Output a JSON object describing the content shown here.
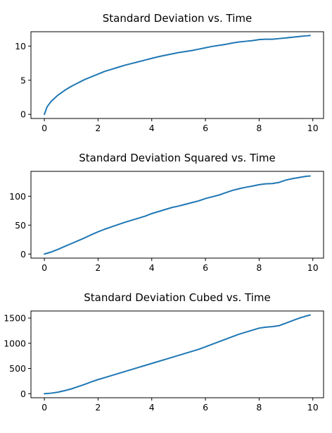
{
  "chart_data": [
    {
      "type": "line",
      "title": "Standard Deviation vs. Time",
      "xlabel": "",
      "ylabel": "",
      "xlim": [
        -0.5,
        10.4
      ],
      "ylim": [
        -0.6,
        12.1
      ],
      "xticks": [
        0,
        2,
        4,
        6,
        8,
        10
      ],
      "yticks": [
        0,
        5,
        10
      ],
      "grid": false,
      "series": [
        {
          "color": "#1f77b4",
          "x": [
            0,
            0.1,
            0.25,
            0.5,
            0.75,
            1,
            1.25,
            1.5,
            1.75,
            2,
            2.25,
            2.5,
            2.75,
            3,
            3.25,
            3.5,
            3.75,
            4,
            4.25,
            4.5,
            4.75,
            5,
            5.25,
            5.5,
            5.75,
            6,
            6.25,
            6.5,
            6.75,
            7,
            7.25,
            7.5,
            7.75,
            8,
            8.25,
            8.5,
            8.75,
            9,
            9.25,
            9.5,
            9.75,
            9.9
          ],
          "y": [
            0,
            1.1,
            1.9,
            2.8,
            3.5,
            4.1,
            4.6,
            5.1,
            5.5,
            5.9,
            6.3,
            6.6,
            6.9,
            7.2,
            7.45,
            7.7,
            7.95,
            8.2,
            8.45,
            8.65,
            8.85,
            9.05,
            9.2,
            9.35,
            9.55,
            9.75,
            9.95,
            10.1,
            10.25,
            10.45,
            10.6,
            10.7,
            10.8,
            10.95,
            11.0,
            11.0,
            11.1,
            11.2,
            11.3,
            11.4,
            11.5,
            11.55
          ]
        }
      ]
    },
    {
      "type": "line",
      "title": "Standard Deviation Squared vs. Time",
      "xlabel": "",
      "ylabel": "",
      "xlim": [
        -0.5,
        10.4
      ],
      "ylim": [
        -7,
        143
      ],
      "xticks": [
        0,
        2,
        4,
        6,
        8,
        10
      ],
      "yticks": [
        0,
        50,
        100
      ],
      "grid": false,
      "series": [
        {
          "color": "#1f77b4",
          "x": [
            0,
            0.25,
            0.5,
            0.75,
            1,
            1.25,
            1.5,
            1.75,
            2,
            2.25,
            2.5,
            2.75,
            3,
            3.25,
            3.5,
            3.75,
            4,
            4.25,
            4.5,
            4.75,
            5,
            5.25,
            5.5,
            5.75,
            6,
            6.25,
            6.5,
            6.75,
            7,
            7.25,
            7.5,
            7.75,
            8,
            8.25,
            8.5,
            8.75,
            9,
            9.25,
            9.5,
            9.75,
            9.9
          ],
          "y": [
            0,
            3.5,
            8,
            13,
            18,
            23,
            28,
            33.5,
            38.5,
            43,
            47,
            51,
            55,
            58.5,
            62,
            65.5,
            70,
            73.5,
            77,
            80.5,
            83,
            86,
            89,
            92,
            96,
            99,
            102,
            106,
            110,
            113,
            115.5,
            117.5,
            120,
            121.5,
            122,
            124,
            128,
            130.5,
            132.5,
            134.5,
            135
          ]
        }
      ]
    },
    {
      "type": "line",
      "title": "Standard Deviation Cubed vs. Time",
      "xlabel": "",
      "ylabel": "",
      "xlim": [
        -0.5,
        10.4
      ],
      "ylim": [
        -80,
        1640
      ],
      "xticks": [
        0,
        2,
        4,
        6,
        8,
        10
      ],
      "yticks": [
        0,
        500,
        1000,
        1500
      ],
      "grid": false,
      "series": [
        {
          "color": "#1f77b4",
          "x": [
            0,
            0.25,
            0.5,
            0.75,
            1,
            1.25,
            1.5,
            1.75,
            2,
            2.25,
            2.5,
            2.75,
            3,
            3.25,
            3.5,
            3.75,
            4,
            4.25,
            4.5,
            4.75,
            5,
            5.25,
            5.5,
            5.75,
            6,
            6.25,
            6.5,
            6.75,
            7,
            7.25,
            7.5,
            7.75,
            8,
            8.25,
            8.5,
            8.75,
            9,
            9.25,
            9.5,
            9.75,
            9.9
          ],
          "y": [
            0,
            10,
            30,
            60,
            95,
            140,
            185,
            235,
            280,
            320,
            360,
            400,
            440,
            480,
            520,
            560,
            600,
            640,
            680,
            720,
            760,
            800,
            840,
            880,
            930,
            980,
            1030,
            1080,
            1130,
            1180,
            1220,
            1260,
            1300,
            1320,
            1330,
            1350,
            1400,
            1450,
            1500,
            1540,
            1560
          ]
        }
      ]
    }
  ]
}
